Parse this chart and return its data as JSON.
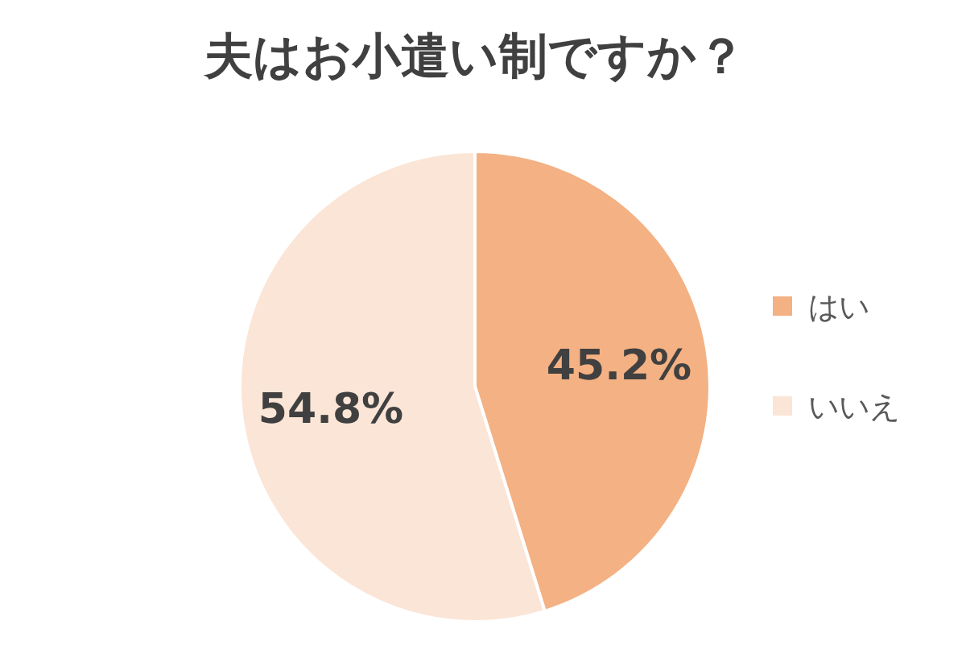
{
  "chart_data": {
    "type": "pie",
    "title": "夫はお小遣い制ですか？",
    "categories": [
      "はい",
      "いいえ"
    ],
    "values": [
      45.2,
      54.8
    ],
    "colors": [
      "#f4b183",
      "#fbe5d6"
    ],
    "value_labels": [
      "45.2%",
      "54.8%"
    ],
    "legend": "right"
  }
}
